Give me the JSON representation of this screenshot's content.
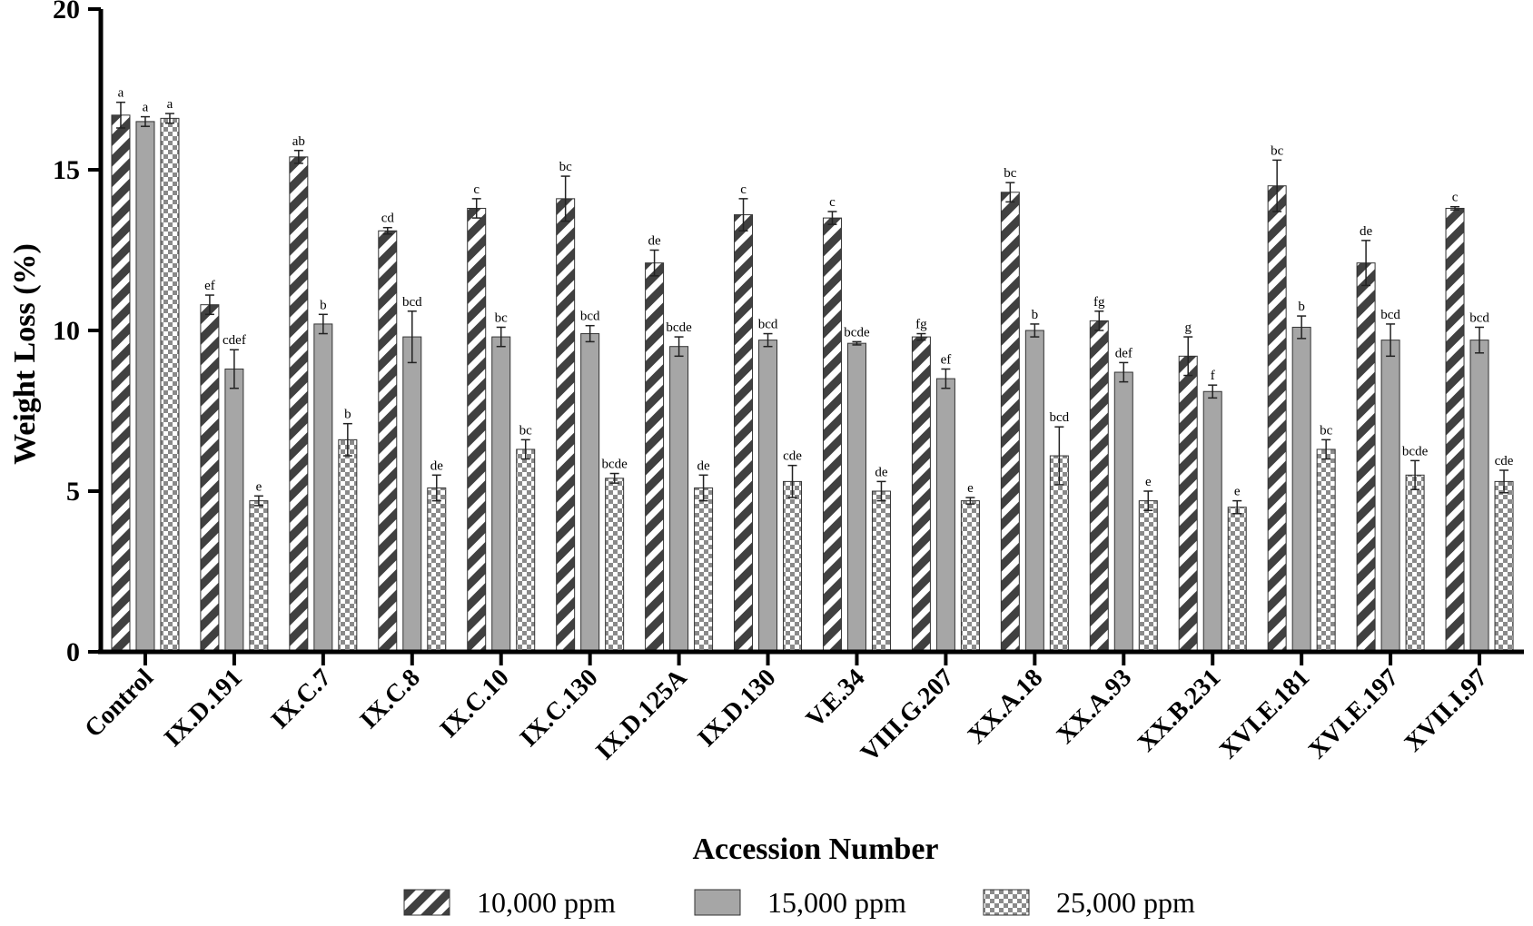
{
  "chart_data": {
    "type": "bar",
    "title": "",
    "xlabel": "Accession Number",
    "ylabel": "Weight Loss (%)",
    "ylim": [
      0,
      20
    ],
    "yticks": [
      0,
      5,
      10,
      15,
      20
    ],
    "legend_position": "bottom",
    "categories": [
      "Control",
      "IX.D.191",
      "IX.C.7",
      "IX.C.8",
      "IX.C.10",
      "IX.C.130",
      "IX.D.125A",
      "IX.D.130",
      "V.E.34",
      "VIII.G.207",
      "XX.A.18",
      "XX.A.93",
      "XX.B.231",
      "XVI.E.181",
      "XVI.E.197",
      "XVII.I.97"
    ],
    "series": [
      {
        "name": "10,000 ppm",
        "pattern": "diagonal-stripes",
        "color": "#555555",
        "values": [
          16.7,
          10.8,
          15.4,
          13.1,
          13.8,
          14.1,
          12.1,
          13.6,
          13.5,
          9.8,
          14.3,
          10.3,
          9.2,
          14.5,
          12.1,
          13.8
        ],
        "errors": [
          0.4,
          0.3,
          0.2,
          0.1,
          0.3,
          0.7,
          0.4,
          0.5,
          0.2,
          0.1,
          0.3,
          0.3,
          0.6,
          0.8,
          0.7,
          0.05
        ],
        "labels": [
          "a",
          "ef",
          "ab",
          "cd",
          "c",
          "bc",
          "de",
          "c",
          "c",
          "fg",
          "bc",
          "fg",
          "g",
          "bc",
          "de",
          "c"
        ]
      },
      {
        "name": "15,000 ppm",
        "pattern": "solid",
        "color": "#a6a6a6",
        "values": [
          16.5,
          8.8,
          10.2,
          9.8,
          9.8,
          9.9,
          9.5,
          9.7,
          9.6,
          8.5,
          10.0,
          8.7,
          8.1,
          10.1,
          9.7,
          9.7
        ],
        "errors": [
          0.15,
          0.6,
          0.3,
          0.8,
          0.3,
          0.25,
          0.3,
          0.2,
          0.05,
          0.3,
          0.2,
          0.3,
          0.2,
          0.35,
          0.5,
          0.4
        ],
        "labels": [
          "a",
          "cdef",
          "b",
          "bcd",
          "bc",
          "bcd",
          "bcde",
          "bcd",
          "bcde",
          "ef",
          "b",
          "def",
          "f",
          "b",
          "bcd",
          "bcd"
        ]
      },
      {
        "name": "25,000 ppm",
        "pattern": "checker",
        "color": "#777777",
        "values": [
          16.6,
          4.7,
          6.6,
          5.1,
          6.3,
          5.4,
          5.1,
          5.3,
          5.0,
          4.7,
          6.1,
          4.7,
          4.5,
          6.3,
          5.5,
          5.3
        ],
        "errors": [
          0.15,
          0.15,
          0.5,
          0.4,
          0.3,
          0.15,
          0.4,
          0.5,
          0.3,
          0.1,
          0.9,
          0.3,
          0.2,
          0.3,
          0.45,
          0.35
        ],
        "labels": [
          "a",
          "e",
          "b",
          "de",
          "bc",
          "bcde",
          "de",
          "cde",
          "de",
          "e",
          "bcd",
          "e",
          "e",
          "bc",
          "bcde",
          "cde"
        ]
      }
    ]
  }
}
